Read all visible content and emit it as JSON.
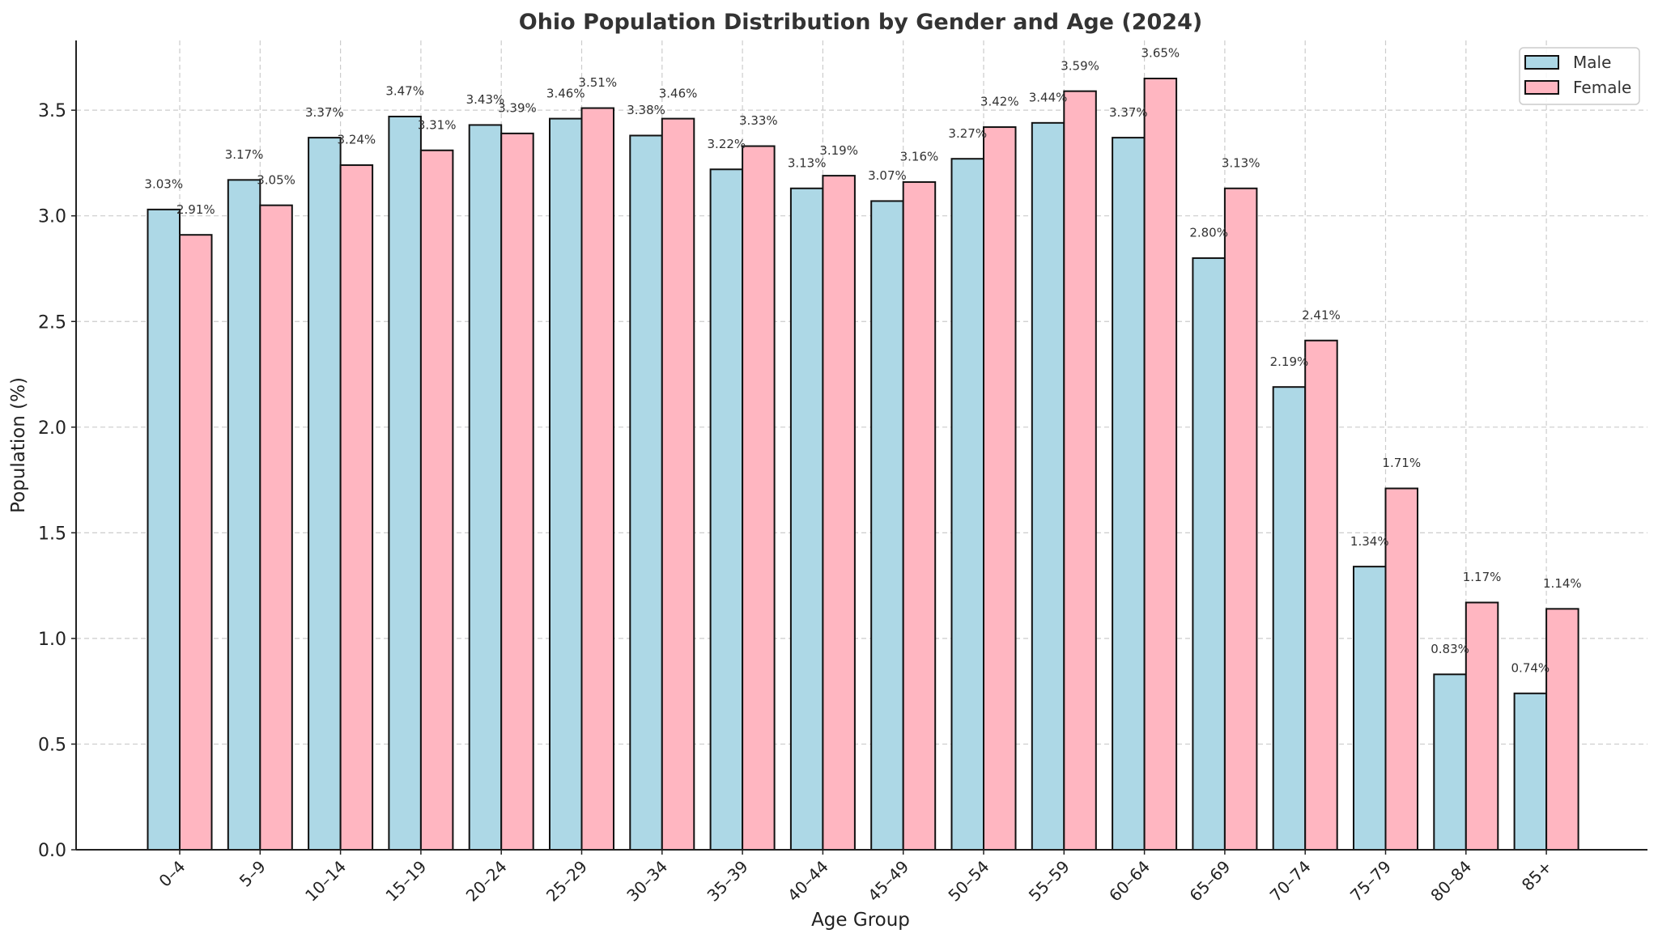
{
  "chart_data": {
    "type": "bar",
    "title": "Ohio Population Distribution by Gender and Age (2024)",
    "xlabel": "Age Group",
    "ylabel": "Population (%)",
    "ylim": [
      0,
      3.83
    ],
    "yticks": [
      0.0,
      0.5,
      1.0,
      1.5,
      2.0,
      2.5,
      3.0,
      3.5
    ],
    "grid": true,
    "legend_position": "top-right",
    "categories": [
      "0–4",
      "5–9",
      "10–14",
      "15–19",
      "20–24",
      "25–29",
      "30–34",
      "35–39",
      "40–44",
      "45–49",
      "50–54",
      "55–59",
      "60–64",
      "65–69",
      "70–74",
      "75–79",
      "80–84",
      "85+"
    ],
    "series": [
      {
        "name": "Male",
        "color": "#add8e6",
        "values": [
          3.03,
          3.17,
          3.37,
          3.47,
          3.43,
          3.46,
          3.38,
          3.22,
          3.13,
          3.07,
          3.27,
          3.44,
          3.37,
          2.8,
          2.19,
          1.34,
          0.83,
          0.74
        ]
      },
      {
        "name": "Female",
        "color": "#ffb6c1",
        "values": [
          2.91,
          3.05,
          3.24,
          3.31,
          3.39,
          3.51,
          3.46,
          3.33,
          3.19,
          3.16,
          3.42,
          3.59,
          3.65,
          3.13,
          2.41,
          1.71,
          1.17,
          1.14
        ]
      }
    ]
  }
}
